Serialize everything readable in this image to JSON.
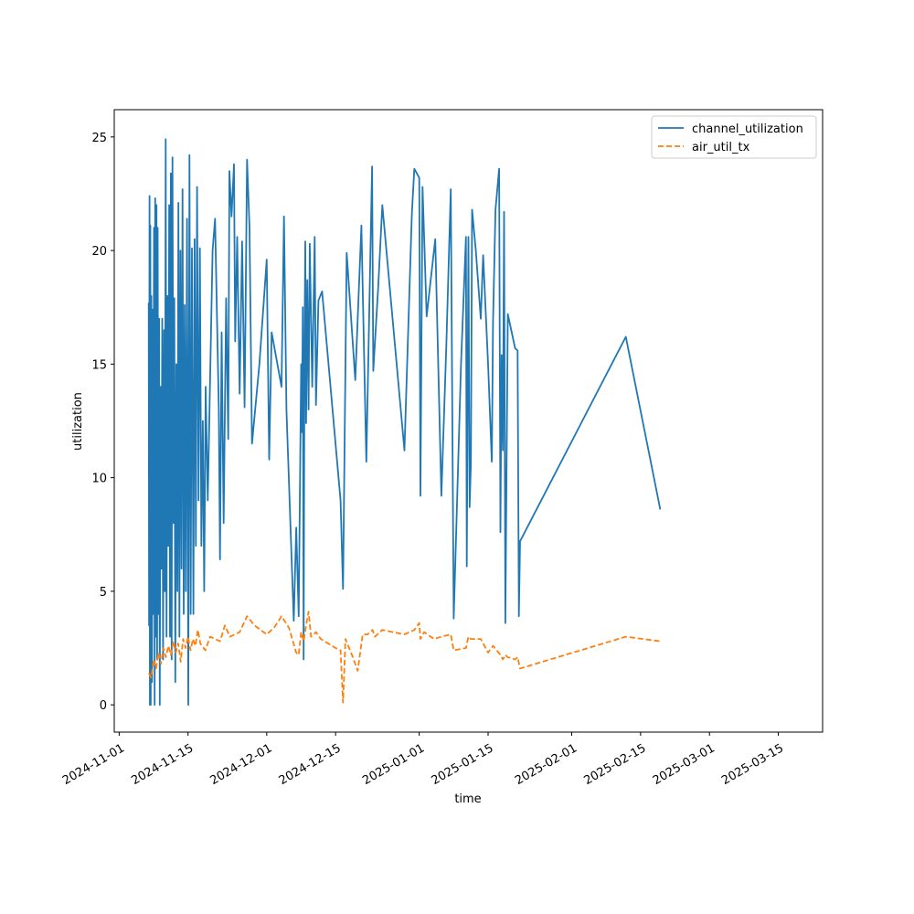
{
  "chart_data": {
    "type": "line",
    "title": "",
    "xlabel": "time",
    "ylabel": "utilization",
    "x_axis_type": "date",
    "xlim": [
      "2024-10-31",
      "2025-03-24"
    ],
    "ylim": [
      -1.2,
      26.2
    ],
    "grid": false,
    "legend_position": "top-right",
    "x_ticks": [
      "2024-11-01",
      "2024-11-15",
      "2024-12-01",
      "2024-12-15",
      "2025-01-01",
      "2025-01-15",
      "2025-02-01",
      "2025-02-15",
      "2025-03-01",
      "2025-03-15"
    ],
    "y_ticks": [
      0,
      5,
      10,
      15,
      20,
      25
    ],
    "series": [
      {
        "name": "channel_utilization",
        "color": "#1f77b4",
        "dash": "solid",
        "points": [
          [
            "2024-11-07T00:00",
            17.7
          ],
          [
            "2024-11-07T02:00",
            3.5
          ],
          [
            "2024-11-07T04:00",
            22.4
          ],
          [
            "2024-11-07T06:00",
            0.0
          ],
          [
            "2024-11-07T08:00",
            21.1
          ],
          [
            "2024-11-07T10:00",
            0.0
          ],
          [
            "2024-11-07T13:00",
            18.0
          ],
          [
            "2024-11-07T16:00",
            1.0
          ],
          [
            "2024-11-07T19:00",
            17.4
          ],
          [
            "2024-11-07T22:00",
            4.0
          ],
          [
            "2024-11-08T02:00",
            21.0
          ],
          [
            "2024-11-08T05:00",
            0.0
          ],
          [
            "2024-11-08T08:00",
            22.3
          ],
          [
            "2024-11-08T11:00",
            3.0
          ],
          [
            "2024-11-08T14:00",
            22.0
          ],
          [
            "2024-11-08T17:00",
            2.0
          ],
          [
            "2024-11-08T20:00",
            21.0
          ],
          [
            "2024-11-09T00:00",
            4.0
          ],
          [
            "2024-11-09T03:00",
            17.0
          ],
          [
            "2024-11-09T06:00",
            0.0
          ],
          [
            "2024-11-09T10:00",
            14.0
          ],
          [
            "2024-11-09T14:00",
            6.0
          ],
          [
            "2024-11-09T18:00",
            17.0
          ],
          [
            "2024-11-09T22:00",
            2.0
          ],
          [
            "2024-11-10T03:00",
            16.5
          ],
          [
            "2024-11-10T07:00",
            5.0
          ],
          [
            "2024-11-10T11:00",
            24.9
          ],
          [
            "2024-11-10T15:00",
            3.0
          ],
          [
            "2024-11-10T19:00",
            18.0
          ],
          [
            "2024-11-11T00:00",
            7.0
          ],
          [
            "2024-11-11T04:00",
            22.0
          ],
          [
            "2024-11-11T08:00",
            3.0
          ],
          [
            "2024-11-11T12:00",
            23.4
          ],
          [
            "2024-11-11T16:00",
            2.0
          ],
          [
            "2024-11-11T20:00",
            24.1
          ],
          [
            "2024-11-12T01:00",
            8.0
          ],
          [
            "2024-11-12T05:00",
            17.9
          ],
          [
            "2024-11-12T10:00",
            1.0
          ],
          [
            "2024-11-12T15:00",
            15.0
          ],
          [
            "2024-11-12T20:00",
            5.0
          ],
          [
            "2024-11-13T01:00",
            22.1
          ],
          [
            "2024-11-13T06:00",
            3.0
          ],
          [
            "2024-11-13T11:00",
            20.0
          ],
          [
            "2024-11-13T16:00",
            6.0
          ],
          [
            "2024-11-13T21:00",
            22.7
          ],
          [
            "2024-11-14T03:00",
            4.0
          ],
          [
            "2024-11-14T08:00",
            17.6
          ],
          [
            "2024-11-14T13:00",
            5.0
          ],
          [
            "2024-11-14T19:00",
            21.4
          ],
          [
            "2024-11-15T01:00",
            0.0
          ],
          [
            "2024-11-15T07:00",
            24.2
          ],
          [
            "2024-11-15T13:00",
            4.0
          ],
          [
            "2024-11-15T19:00",
            20.1
          ],
          [
            "2024-11-16T02:00",
            4.0
          ],
          [
            "2024-11-16T08:00",
            20.5
          ],
          [
            "2024-11-16T14:00",
            7.0
          ],
          [
            "2024-11-16T20:00",
            22.8
          ],
          [
            "2024-11-17T03:00",
            9.0
          ],
          [
            "2024-11-17T10:00",
            20.1
          ],
          [
            "2024-11-17T17:00",
            7.0
          ],
          [
            "2024-11-18T00:00",
            12.5
          ],
          [
            "2024-11-18T07:00",
            5.0
          ],
          [
            "2024-11-18T14:00",
            14.0
          ],
          [
            "2024-11-19T00:00",
            9.0
          ],
          [
            "2024-11-20T00:00",
            20.0
          ],
          [
            "2024-11-20T12:00",
            21.4
          ],
          [
            "2024-11-21T06:00",
            13.0
          ],
          [
            "2024-11-21T12:00",
            6.4
          ],
          [
            "2024-11-21T20:00",
            16.4
          ],
          [
            "2024-11-22T06:00",
            8.0
          ],
          [
            "2024-11-22T18:00",
            17.9
          ],
          [
            "2024-11-23T04:00",
            11.7
          ],
          [
            "2024-11-23T10:00",
            23.5
          ],
          [
            "2024-11-23T20:00",
            21.5
          ],
          [
            "2024-11-24T08:00",
            23.8
          ],
          [
            "2024-11-24T14:00",
            16.0
          ],
          [
            "2024-11-25T00:00",
            20.6
          ],
          [
            "2024-11-25T12:00",
            13.7
          ],
          [
            "2024-11-26T00:00",
            20.4
          ],
          [
            "2024-11-26T12:00",
            13.1
          ],
          [
            "2024-11-27T00:00",
            24.0
          ],
          [
            "2024-11-27T12:00",
            21.0
          ],
          [
            "2024-11-28T00:00",
            11.5
          ],
          [
            "2024-11-29T12:00",
            15.0
          ],
          [
            "2024-12-01T00:00",
            19.6
          ],
          [
            "2024-12-01T12:00",
            10.8
          ],
          [
            "2024-12-02T00:00",
            16.4
          ],
          [
            "2024-12-04T00:00",
            14.0
          ],
          [
            "2024-12-04T12:00",
            21.5
          ],
          [
            "2024-12-05T00:00",
            13.0
          ],
          [
            "2024-12-06T12:00",
            3.7
          ],
          [
            "2024-12-07T00:00",
            7.8
          ],
          [
            "2024-12-07T12:00",
            3.9
          ],
          [
            "2024-12-08T00:00",
            15.0
          ],
          [
            "2024-12-08T04:00",
            12.0
          ],
          [
            "2024-12-08T08:00",
            17.5
          ],
          [
            "2024-12-08T12:00",
            2.0
          ],
          [
            "2024-12-08T16:00",
            15.5
          ],
          [
            "2024-12-08T20:00",
            20.4
          ],
          [
            "2024-12-09T00:00",
            12.4
          ],
          [
            "2024-12-09T06:00",
            18.7
          ],
          [
            "2024-12-09T12:00",
            13.0
          ],
          [
            "2024-12-09T18:00",
            20.3
          ],
          [
            "2024-12-10T06:00",
            14.0
          ],
          [
            "2024-12-10T18:00",
            20.6
          ],
          [
            "2024-12-11T00:00",
            13.2
          ],
          [
            "2024-12-11T12:00",
            17.8
          ],
          [
            "2024-12-12T06:00",
            18.2
          ],
          [
            "2024-12-16T00:00",
            9.0
          ],
          [
            "2024-12-16T12:00",
            5.1
          ],
          [
            "2024-12-17T06:00",
            19.9
          ],
          [
            "2024-12-19T00:00",
            14.3
          ],
          [
            "2024-12-20T06:00",
            21.1
          ],
          [
            "2024-12-21T06:00",
            10.7
          ],
          [
            "2024-12-22T10:00",
            23.7
          ],
          [
            "2024-12-22T16:00",
            14.7
          ],
          [
            "2024-12-23T16:00",
            18.4
          ],
          [
            "2024-12-24T12:00",
            22.0
          ],
          [
            "2024-12-29T00:00",
            11.2
          ],
          [
            "2024-12-30T12:00",
            21.6
          ],
          [
            "2024-12-31T00:00",
            23.6
          ],
          [
            "2025-01-01T00:00",
            23.2
          ],
          [
            "2025-01-01T06:00",
            9.2
          ],
          [
            "2025-01-01T16:00",
            22.8
          ],
          [
            "2025-01-02T12:00",
            17.1
          ],
          [
            "2025-01-04T06:00",
            20.5
          ],
          [
            "2025-01-05T12:00",
            9.2
          ],
          [
            "2025-01-06T12:00",
            15.8
          ],
          [
            "2025-01-07T10:00",
            22.7
          ],
          [
            "2025-01-08T00:00",
            3.8
          ],
          [
            "2025-01-09T12:00",
            15.0
          ],
          [
            "2025-01-10T12:00",
            20.6
          ],
          [
            "2025-01-10T16:00",
            6.1
          ],
          [
            "2025-01-11T00:00",
            20.6
          ],
          [
            "2025-01-11T06:00",
            8.7
          ],
          [
            "2025-01-11T12:00",
            10.6
          ],
          [
            "2025-01-11T18:00",
            21.8
          ],
          [
            "2025-01-12T12:00",
            20.0
          ],
          [
            "2025-01-13T12:00",
            17.0
          ],
          [
            "2025-01-14T00:00",
            19.8
          ],
          [
            "2025-01-15T00:00",
            15.0
          ],
          [
            "2025-01-15T18:00",
            10.7
          ],
          [
            "2025-01-16T00:00",
            16.8
          ],
          [
            "2025-01-16T12:00",
            21.8
          ],
          [
            "2025-01-17T06:00",
            23.6
          ],
          [
            "2025-01-17T12:00",
            7.6
          ],
          [
            "2025-01-17T18:00",
            15.4
          ],
          [
            "2025-01-18T00:00",
            11.2
          ],
          [
            "2025-01-18T06:00",
            21.7
          ],
          [
            "2025-01-18T12:00",
            3.6
          ],
          [
            "2025-01-18T18:00",
            10.3
          ],
          [
            "2025-01-19T00:00",
            17.2
          ],
          [
            "2025-01-20T12:00",
            15.7
          ],
          [
            "2025-01-21T00:00",
            15.6
          ],
          [
            "2025-01-21T06:00",
            3.9
          ],
          [
            "2025-01-21T12:00",
            7.2
          ],
          [
            "2025-02-12T00:00",
            16.2
          ],
          [
            "2025-02-19T00:00",
            8.6
          ]
        ]
      },
      {
        "name": "air_util_tx",
        "color": "#ff7f0e",
        "dash": "dashed",
        "points": [
          [
            "2024-11-07T00:00",
            1.4
          ],
          [
            "2024-11-07T12:00",
            1.2
          ],
          [
            "2024-11-08T00:00",
            2.0
          ],
          [
            "2024-11-08T12:00",
            1.6
          ],
          [
            "2024-11-09T00:00",
            2.3
          ],
          [
            "2024-11-09T12:00",
            1.8
          ],
          [
            "2024-11-10T00:00",
            2.5
          ],
          [
            "2024-11-10T12:00",
            2.1
          ],
          [
            "2024-11-11T00:00",
            2.6
          ],
          [
            "2024-11-11T12:00",
            2.2
          ],
          [
            "2024-11-12T00:00",
            2.8
          ],
          [
            "2024-11-12T12:00",
            2.3
          ],
          [
            "2024-11-13T00:00",
            2.7
          ],
          [
            "2024-11-13T12:00",
            1.9
          ],
          [
            "2024-11-14T00:00",
            2.9
          ],
          [
            "2024-11-14T12:00",
            2.5
          ],
          [
            "2024-11-15T00:00",
            3.0
          ],
          [
            "2024-11-15T12:00",
            2.4
          ],
          [
            "2024-11-16T00:00",
            2.9
          ],
          [
            "2024-11-16T12:00",
            2.6
          ],
          [
            "2024-11-17T00:00",
            3.3
          ],
          [
            "2024-11-17T12:00",
            2.7
          ],
          [
            "2024-11-18T12:00",
            2.4
          ],
          [
            "2024-11-19T12:00",
            3.0
          ],
          [
            "2024-11-20T12:00",
            2.9
          ],
          [
            "2024-11-21T12:00",
            2.8
          ],
          [
            "2024-11-22T12:00",
            3.5
          ],
          [
            "2024-11-23T12:00",
            3.0
          ],
          [
            "2024-11-25T12:00",
            3.2
          ],
          [
            "2024-11-27T00:00",
            3.9
          ],
          [
            "2024-11-28T12:00",
            3.5
          ],
          [
            "2024-12-01T00:00",
            3.1
          ],
          [
            "2024-12-02T12:00",
            3.4
          ],
          [
            "2024-12-04T00:00",
            3.9
          ],
          [
            "2024-12-05T12:00",
            3.4
          ],
          [
            "2024-12-07T00:00",
            2.3
          ],
          [
            "2024-12-07T12:00",
            2.2
          ],
          [
            "2024-12-08T00:00",
            3.2
          ],
          [
            "2024-12-08T12:00",
            2.8
          ],
          [
            "2024-12-09T00:00",
            3.5
          ],
          [
            "2024-12-09T12:00",
            4.1
          ],
          [
            "2024-12-10T00:00",
            3.0
          ],
          [
            "2024-12-11T00:00",
            3.2
          ],
          [
            "2024-12-12T00:00",
            2.9
          ],
          [
            "2024-12-15T00:00",
            2.5
          ],
          [
            "2024-12-16T00:00",
            2.4
          ],
          [
            "2024-12-16T12:00",
            0.1
          ],
          [
            "2024-12-17T00:00",
            2.9
          ],
          [
            "2024-12-18T12:00",
            2.1
          ],
          [
            "2024-12-19T12:00",
            1.5
          ],
          [
            "2024-12-20T12:00",
            3.1
          ],
          [
            "2024-12-21T12:00",
            3.1
          ],
          [
            "2024-12-22T12:00",
            3.3
          ],
          [
            "2024-12-23T00:00",
            3.0
          ],
          [
            "2024-12-24T12:00",
            3.3
          ],
          [
            "2024-12-29T00:00",
            3.1
          ],
          [
            "2024-12-31T00:00",
            3.3
          ],
          [
            "2025-01-01T00:00",
            3.6
          ],
          [
            "2025-01-01T06:00",
            2.9
          ],
          [
            "2025-01-02T00:00",
            3.2
          ],
          [
            "2025-01-04T00:00",
            2.9
          ],
          [
            "2025-01-05T12:00",
            3.0
          ],
          [
            "2025-01-07T10:00",
            3.1
          ],
          [
            "2025-01-08T00:00",
            2.4
          ],
          [
            "2025-01-10T12:00",
            2.5
          ],
          [
            "2025-01-11T00:00",
            3.0
          ],
          [
            "2025-01-11T12:00",
            2.9
          ],
          [
            "2025-01-13T12:00",
            2.9
          ],
          [
            "2025-01-15T00:00",
            2.3
          ],
          [
            "2025-01-16T00:00",
            2.6
          ],
          [
            "2025-01-17T12:00",
            2.2
          ],
          [
            "2025-01-18T00:00",
            2.0
          ],
          [
            "2025-01-18T12:00",
            2.2
          ],
          [
            "2025-01-19T00:00",
            2.1
          ],
          [
            "2025-01-20T12:00",
            2.0
          ],
          [
            "2025-01-21T00:00",
            2.1
          ],
          [
            "2025-01-21T12:00",
            1.6
          ],
          [
            "2025-02-12T00:00",
            3.0
          ],
          [
            "2025-02-19T00:00",
            2.8
          ]
        ]
      }
    ]
  }
}
